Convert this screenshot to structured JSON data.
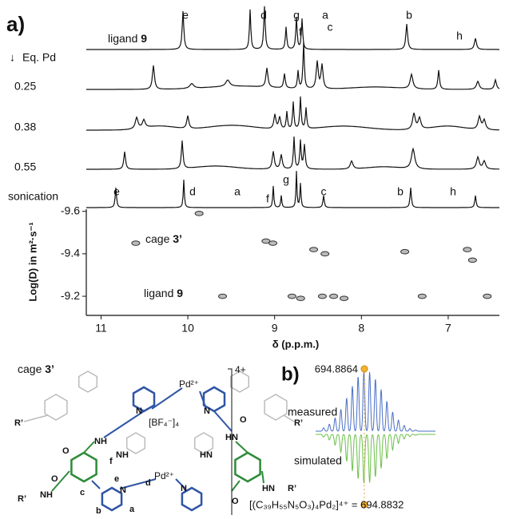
{
  "panel_a": {
    "label": "a)",
    "ligand_label": {
      "text": "ligand",
      "number": "9"
    },
    "eq_label": "Eq. Pd",
    "rows": [
      "0.25",
      "0.38",
      "0.55",
      "sonication"
    ],
    "ligand_peaks": [
      {
        "letter": "e",
        "color": "#2f55a4"
      },
      {
        "letter": "d",
        "color": "#2f55a4"
      },
      {
        "letter": "g",
        "color": "#2e8b3a"
      },
      {
        "letter": "f",
        "color": "#2e8b3a"
      },
      {
        "letter": "a",
        "color": "#2f55a4"
      },
      {
        "letter": "c",
        "color": "#2f55a4"
      },
      {
        "letter": "b",
        "color": "#2f55a4"
      },
      {
        "letter": "h",
        "color": "#2e8b3a"
      }
    ],
    "sonication_peaks": [
      {
        "letter": "e",
        "color": "#2f55a4"
      },
      {
        "letter": "d",
        "color": "#2f55a4"
      },
      {
        "letter": "a",
        "color": "#2f55a4"
      },
      {
        "letter": "f",
        "color": "#2e8b3a"
      },
      {
        "letter": "g",
        "color": "#2e8b3a"
      },
      {
        "letter": "c",
        "color": "#2f55a4"
      },
      {
        "letter": "b",
        "color": "#2f55a4"
      },
      {
        "letter": "h",
        "color": "#2e8b3a"
      }
    ],
    "dosy": {
      "y_label": "Log(D) in m²·s⁻¹",
      "x_label": "δ (p.p.m.)",
      "xlim": [
        11.17,
        6.41
      ],
      "ylim": [
        -9.61,
        -9.11
      ],
      "xticks": [
        11,
        10,
        9,
        8,
        7
      ],
      "yticks": [
        -9.6,
        -9.4,
        -9.2
      ],
      "series": [
        {
          "name": "cage",
          "number": "3’",
          "x": [
            10.6,
            9.87,
            9.1,
            9.02,
            8.55,
            8.42,
            7.5,
            6.78,
            6.72
          ],
          "y": [
            -9.45,
            -9.59,
            -9.46,
            -9.45,
            -9.42,
            -9.4,
            -9.41,
            -9.42,
            -9.37
          ]
        },
        {
          "name": "ligand",
          "number": "9",
          "x": [
            9.6,
            8.8,
            8.7,
            8.45,
            8.32,
            8.2,
            7.3,
            6.55
          ],
          "y": [
            -9.2,
            -9.2,
            -9.19,
            -9.2,
            -9.2,
            -9.19,
            -9.2,
            -9.2
          ]
        }
      ]
    }
  },
  "panel_b": {
    "label": "b)",
    "measured_label": "measured",
    "simulated_label": "simulated",
    "measured_mz": "694.8864",
    "simulated_formula": "[(C₃₉H₅₅N₅O₃)₄Pd₂]⁴⁺ = 694.8832"
  },
  "structure": {
    "title": {
      "text": "cage",
      "number": "3’"
    },
    "charge": "4+",
    "pd_top": "Pd²⁺",
    "pd_bottom": "Pd²⁺",
    "counterion": "[BF₄⁻]₄",
    "labels": [
      "N",
      "N",
      "NH",
      "HN",
      "NH",
      "HN",
      "O",
      "O",
      "R’",
      "NH",
      "HN",
      "R’",
      "O",
      "O",
      "N",
      "N",
      "a",
      "b",
      "c",
      "d",
      "e",
      "f",
      "R’",
      "R’"
    ]
  }
}
